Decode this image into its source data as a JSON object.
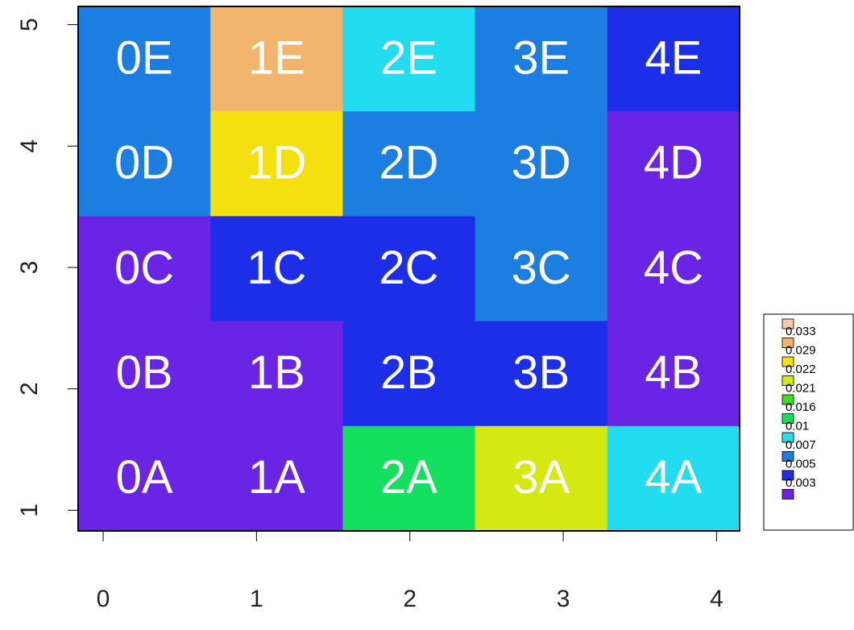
{
  "chart_data": {
    "type": "heatmap",
    "rows": [
      [
        {
          "label": "0E",
          "color": "#1c7ee0"
        },
        {
          "label": "1E",
          "color": "#f2b56e"
        },
        {
          "label": "2E",
          "color": "#22dcf0"
        },
        {
          "label": "3E",
          "color": "#1c7ee0"
        },
        {
          "label": "4E",
          "color": "#1c2ee8"
        }
      ],
      [
        {
          "label": "0D",
          "color": "#1c7ee0"
        },
        {
          "label": "1D",
          "color": "#f4e010"
        },
        {
          "label": "2D",
          "color": "#1c7ee0"
        },
        {
          "label": "3D",
          "color": "#1c7ee0"
        },
        {
          "label": "4D",
          "color": "#6a24e6"
        }
      ],
      [
        {
          "label": "0C",
          "color": "#6a24e6"
        },
        {
          "label": "1C",
          "color": "#1c2ee8"
        },
        {
          "label": "2C",
          "color": "#1c2ee8"
        },
        {
          "label": "3C",
          "color": "#1c7ee0"
        },
        {
          "label": "4C",
          "color": "#6a24e6"
        }
      ],
      [
        {
          "label": "0B",
          "color": "#6a24e6"
        },
        {
          "label": "1B",
          "color": "#6a24e6"
        },
        {
          "label": "2B",
          "color": "#1c2ee8"
        },
        {
          "label": "3B",
          "color": "#1c2ee8"
        },
        {
          "label": "4B",
          "color": "#6a24e6"
        }
      ],
      [
        {
          "label": "0A",
          "color": "#6a24e6"
        },
        {
          "label": "1A",
          "color": "#6a24e6"
        },
        {
          "label": "2A",
          "color": "#14e060"
        },
        {
          "label": "3A",
          "color": "#d4e812"
        },
        {
          "label": "4A",
          "color": "#22dcf0"
        }
      ]
    ],
    "legend": [
      {
        "label": 0.033,
        "color": "#f4c8a8"
      },
      {
        "label": 0.029,
        "color": "#f2b56e"
      },
      {
        "label": 0.022,
        "color": "#f4e010"
      },
      {
        "label": 0.021,
        "color": "#d4e812"
      },
      {
        "label": 0.016,
        "color": "#40e020"
      },
      {
        "label": 0.01,
        "color": "#14e060"
      },
      {
        "label": 0.007,
        "color": "#22dcf0"
      },
      {
        "label": 0.005,
        "color": "#1c7ee0"
      },
      {
        "label": 0.003,
        "color": "#1c2ee8"
      },
      {
        "label": null,
        "color": "#6a24e6"
      }
    ],
    "xlim": [
      -0.163,
      4.15
    ],
    "xticks": [
      0,
      1,
      2,
      3,
      4
    ],
    "ylim": [
      0.83,
      5.15
    ],
    "yticks": [
      1,
      2,
      3,
      4,
      5
    ]
  }
}
